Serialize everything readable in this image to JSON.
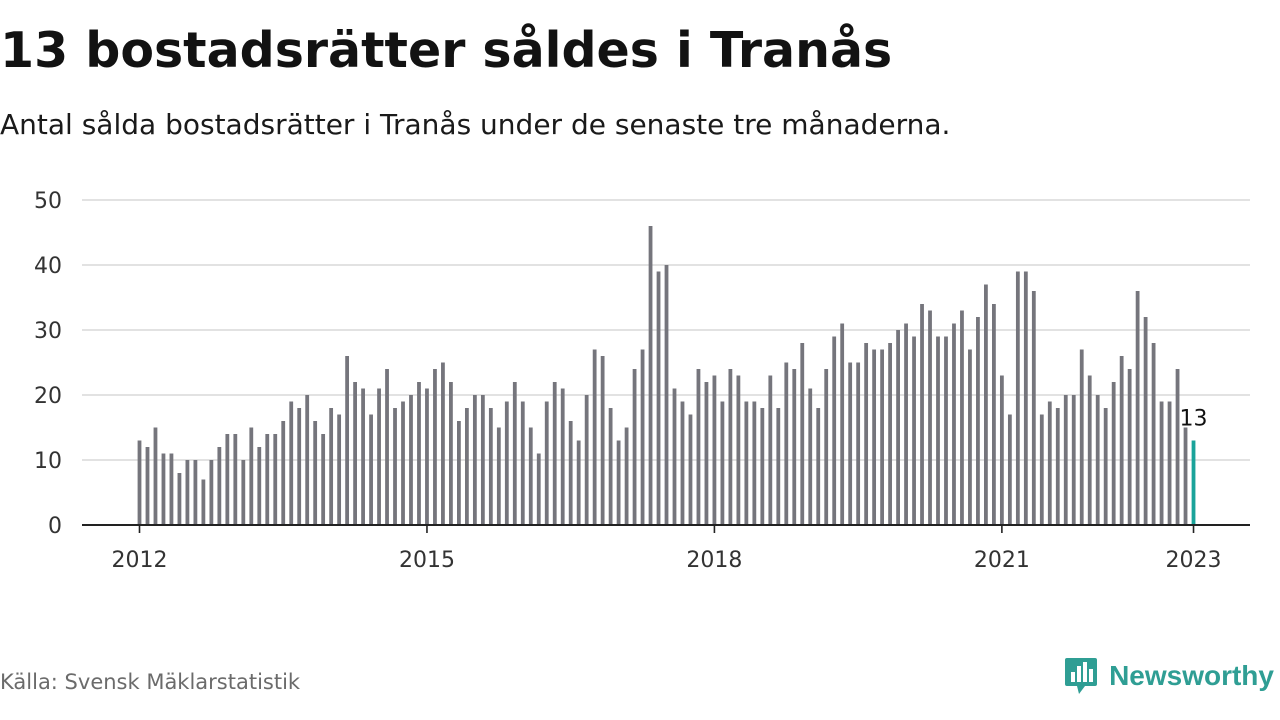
{
  "header": {
    "title": "13 bostadsrätter såldes i Tranås",
    "subtitle": "Antal sålda bostadsrätter i Tranås under de senaste tre månaderna."
  },
  "footer": {
    "source": "Källa: Svensk Mäklarstatistik",
    "brand": "Newsworthy",
    "brand_icon": "newsworthy-logo-icon"
  },
  "colors": {
    "bar": "#75757c",
    "highlight": "#1aa39a",
    "grid": "#d9d9d9",
    "axis": "#222222",
    "brand": "#2f9e94"
  },
  "chart_data": {
    "type": "bar",
    "title": "13 bostadsrätter såldes i Tranås",
    "subtitle": "Antal sålda bostadsrätter i Tranås under de senaste tre månaderna.",
    "xlabel": "",
    "ylabel": "",
    "ylim": [
      0,
      50
    ],
    "y_ticks": [
      0,
      10,
      20,
      30,
      40,
      50
    ],
    "y_tick_labels": [
      "0",
      "10",
      "20",
      "30",
      "40",
      "50"
    ],
    "x_ticks": [
      "2012",
      "2015",
      "2018",
      "2021",
      "2023"
    ],
    "grid": true,
    "legend": "none",
    "start": "2012-01",
    "end": "2023-01",
    "frequency": "monthly",
    "series": [
      {
        "values": [
          13,
          12,
          15,
          11,
          11,
          8,
          10,
          10,
          7,
          10,
          12,
          14,
          14,
          10,
          15,
          12,
          14,
          14,
          16,
          19,
          18,
          20,
          16,
          14,
          18,
          17,
          26,
          22,
          21,
          17,
          21,
          24,
          18,
          19,
          20,
          22,
          21,
          24,
          25,
          22,
          16,
          18,
          20,
          20,
          18,
          15,
          19,
          22,
          19,
          15,
          11,
          19,
          22,
          21,
          16,
          13,
          20,
          27,
          26,
          18,
          13,
          15,
          24,
          27,
          46,
          39,
          40,
          21,
          19,
          17,
          24,
          22,
          23,
          19,
          24,
          23,
          19,
          19,
          18,
          23,
          18,
          25,
          24,
          28,
          21,
          18,
          24,
          29,
          31,
          25,
          25,
          28,
          27,
          27,
          28,
          30,
          31,
          29,
          34,
          33,
          29,
          29,
          31,
          33,
          27,
          32,
          37,
          34,
          23,
          17,
          39,
          39,
          36,
          17,
          19,
          18,
          20,
          20,
          27,
          23,
          20,
          18,
          22,
          26,
          24,
          36,
          32,
          28,
          19,
          19,
          24,
          15,
          13
        ]
      }
    ],
    "highlight": {
      "label": "13",
      "value": 13
    }
  }
}
